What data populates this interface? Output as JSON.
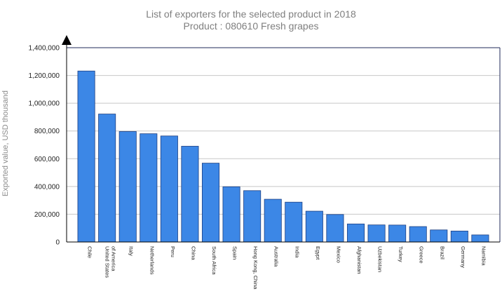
{
  "chart_data": {
    "type": "bar",
    "title": "List of exporters for the selected product in 2018",
    "subtitle": "Product : 080610 Fresh grapes",
    "xlabel": "",
    "ylabel": "Exported value, USD thousand",
    "ylim": [
      0,
      1400000
    ],
    "yticks": [
      0,
      200000,
      400000,
      600000,
      800000,
      1000000,
      1200000,
      1400000
    ],
    "ytick_labels": [
      "0",
      "200,000",
      "400,000",
      "600,000",
      "800,000",
      "1,000,000",
      "1,200,000",
      "1,400,000"
    ],
    "grid": "horizontal",
    "bar_color": "#3c87e6",
    "categories": [
      [
        "Chile"
      ],
      [
        "United States",
        "of America"
      ],
      [
        "Italy"
      ],
      [
        "Netherlands"
      ],
      [
        "Peru"
      ],
      [
        "China"
      ],
      [
        "South Africa"
      ],
      [
        "Spain"
      ],
      [
        "Hong Kong, China"
      ],
      [
        "Australia"
      ],
      [
        "India"
      ],
      [
        "Egypt"
      ],
      [
        "Mexico"
      ],
      [
        "Afghanistan"
      ],
      [
        "Uzbekistan"
      ],
      [
        "Turkey"
      ],
      [
        "Greece"
      ],
      [
        "Brazil"
      ],
      [
        "Germany"
      ],
      [
        "Namibia"
      ]
    ],
    "values": [
      1232000,
      922000,
      796000,
      780000,
      764000,
      690000,
      568000,
      398000,
      370000,
      308000,
      287000,
      222000,
      198000,
      130000,
      123000,
      122000,
      111000,
      87000,
      79000,
      51000
    ]
  }
}
